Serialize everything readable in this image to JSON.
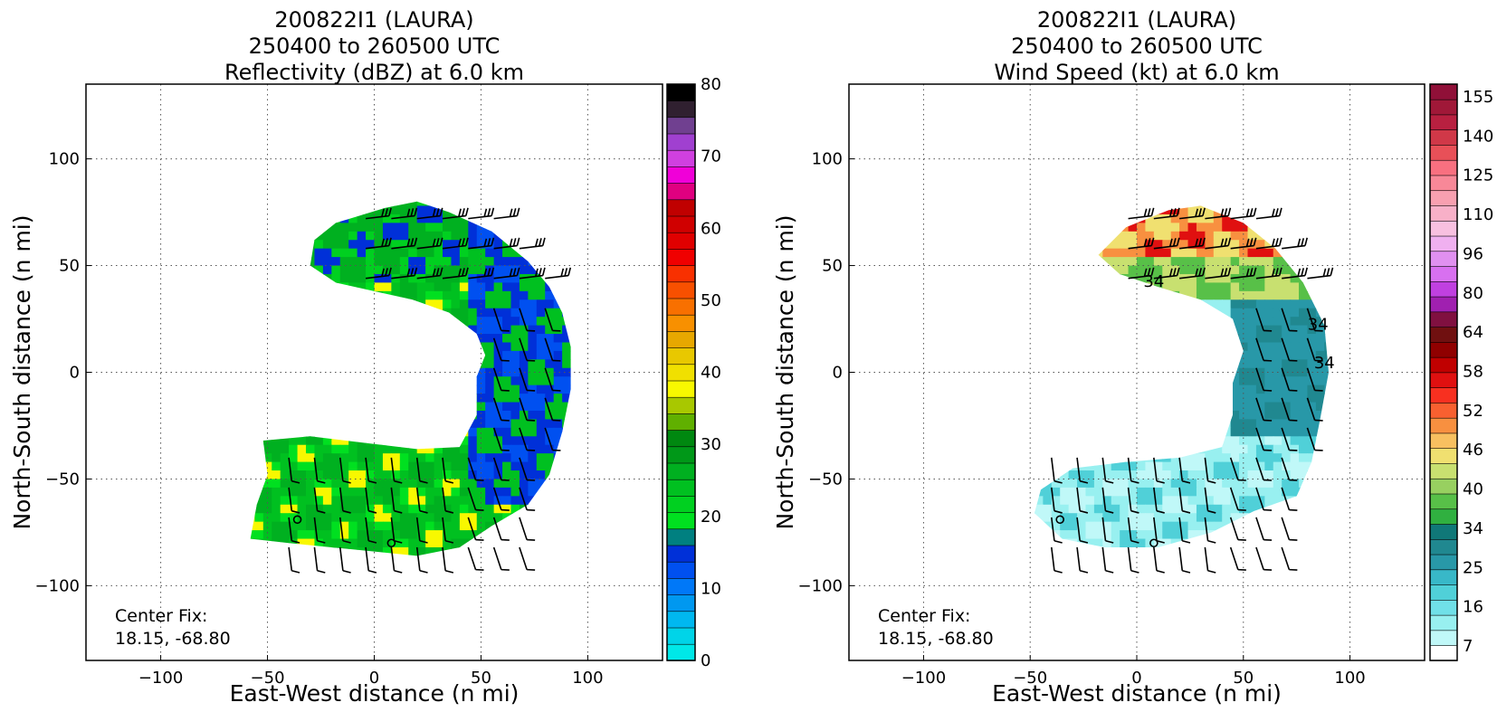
{
  "chart_data": [
    {
      "type": "heatmap",
      "title": [
        "200822I1 (LAURA)",
        "250400 to 260500 UTC",
        "Reflectivity (dBZ) at 6.0 km"
      ],
      "xlabel": "East-West distance (n mi)",
      "ylabel": "North-South distance (n mi)",
      "xlim": [
        -135,
        135
      ],
      "ylim": [
        -135,
        135
      ],
      "xticks": [
        "−100",
        "−50",
        "0",
        "50",
        "100"
      ],
      "yticks": [
        "100",
        "50",
        "0",
        "−50",
        "−100"
      ],
      "grid": true,
      "annotation": [
        "Center Fix:",
        "18.15, -68.80"
      ],
      "colorbar": {
        "min": 0,
        "max": 80,
        "ticks": [
          "80",
          "70",
          "60",
          "50",
          "40",
          "30",
          "20",
          "10",
          "0"
        ],
        "colors": [
          "#00e8e8",
          "#00d4e8",
          "#00b8f0",
          "#0098f0",
          "#0078f8",
          "#0050f0",
          "#0030d8",
          "#008080",
          "#00e020",
          "#00d020",
          "#00c020",
          "#00b020",
          "#009818",
          "#008810",
          "#60b000",
          "#a8c800",
          "#f8f800",
          "#f0e000",
          "#e8c800",
          "#e8a800",
          "#f89000",
          "#f87000",
          "#f85000",
          "#f83000",
          "#f00000",
          "#e00000",
          "#d00000",
          "#c00000",
          "#e00080",
          "#f000d8",
          "#d040e0",
          "#a040d0",
          "#704090",
          "#302030",
          "#000000"
        ]
      },
      "field": "radar echo spanning roughly -58 to 92 n mi east-west and -82 to 80 n mi north-south, open to the west; values mostly 15–30 dBZ"
    },
    {
      "type": "heatmap",
      "title": [
        "200822I1 (LAURA)",
        "250400 to 260500 UTC",
        "Wind Speed (kt) at 6.0 km"
      ],
      "xlabel": "East-West distance (n mi)",
      "ylabel": "North-South distance (n mi)",
      "xlim": [
        -135,
        135
      ],
      "ylim": [
        -135,
        135
      ],
      "xticks": [
        "−100",
        "−50",
        "0",
        "50",
        "100"
      ],
      "yticks": [
        "100",
        "50",
        "0",
        "−50",
        "−100"
      ],
      "grid": true,
      "annotation": [
        "Center Fix:",
        "18.15, -68.80"
      ],
      "contour_labels": [
        "34",
        "34",
        "34"
      ],
      "colorbar": {
        "ticks": [
          "155",
          "140",
          "125",
          "110",
          "96",
          "80",
          "64",
          "58",
          "52",
          "46",
          "40",
          "34",
          "25",
          "16",
          "7"
        ],
        "colors": [
          "#ffffff",
          "#c0f8f8",
          "#98f0f0",
          "#70e0e8",
          "#50d0d8",
          "#38b8c8",
          "#2898a8",
          "#208890",
          "#107878",
          "#30b040",
          "#58c048",
          "#98d060",
          "#c8e070",
          "#f0e070",
          "#f8c060",
          "#f89040",
          "#f86030",
          "#f83020",
          "#e01010",
          "#c00000",
          "#900000",
          "#701010",
          "#801040",
          "#a020b0",
          "#c040e0",
          "#d870f0",
          "#e090f0",
          "#f0b0f0",
          "#f8c0e0",
          "#f8b0c8",
          "#f8a0b0",
          "#f88898",
          "#f87080",
          "#e85058",
          "#d03848",
          "#b82040",
          "#a01838",
          "#901038"
        ]
      },
      "field": "wind speeds mostly 7–34 kt in the south and east, 40–58 kt in the northern arc"
    }
  ]
}
